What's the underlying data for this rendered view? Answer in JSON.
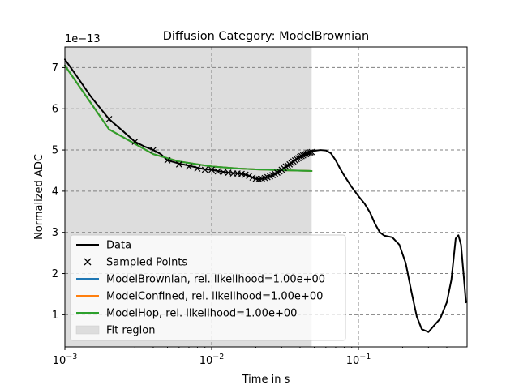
{
  "chart_data": {
    "type": "line",
    "title": "Diffusion Category: ModelBrownian",
    "xlabel": "Time in s",
    "ylabel": "Normalized ADC",
    "x_scale": "log",
    "xlim": [
      0.001,
      0.55
    ],
    "ylim": [
      0.22,
      7.5
    ],
    "y_offset_label": "1e−13",
    "x_ticks": [
      {
        "value": 0.001,
        "base": "10",
        "exp": "−3"
      },
      {
        "value": 0.01,
        "base": "10",
        "exp": "−2"
      },
      {
        "value": 0.1,
        "base": "10",
        "exp": "−1"
      }
    ],
    "y_ticks": [
      {
        "value": 1,
        "label": "1"
      },
      {
        "value": 2,
        "label": "2"
      },
      {
        "value": 3,
        "label": "3"
      },
      {
        "value": 4,
        "label": "4"
      },
      {
        "value": 5,
        "label": "5"
      },
      {
        "value": 6,
        "label": "6"
      },
      {
        "value": 7,
        "label": "7"
      }
    ],
    "grid": true,
    "legend_position": "lower-left",
    "fit_region": {
      "x_start": 0.001,
      "x_end": 0.048,
      "color": "#dddddd",
      "name": "Fit region"
    },
    "series": [
      {
        "name": "Data",
        "color": "#000000",
        "kind": "line",
        "x": [
          0.001,
          0.0012,
          0.0015,
          0.002,
          0.0025,
          0.003,
          0.0035,
          0.004,
          0.0045,
          0.005,
          0.006,
          0.007,
          0.008,
          0.009,
          0.01,
          0.011,
          0.012,
          0.013,
          0.014,
          0.015,
          0.016,
          0.017,
          0.018,
          0.019,
          0.02,
          0.021,
          0.022,
          0.023,
          0.025,
          0.027,
          0.03,
          0.033,
          0.036,
          0.04,
          0.045,
          0.05,
          0.055,
          0.06,
          0.065,
          0.07,
          0.075,
          0.08,
          0.09,
          0.1,
          0.11,
          0.12,
          0.13,
          0.14,
          0.15,
          0.17,
          0.19,
          0.21,
          0.23,
          0.25,
          0.27,
          0.3,
          0.33,
          0.36,
          0.4,
          0.43,
          0.46,
          0.48,
          0.5,
          0.52,
          0.54
        ],
        "y": [
          7.2,
          6.8,
          6.3,
          5.75,
          5.45,
          5.2,
          5.08,
          5.0,
          4.9,
          4.75,
          4.67,
          4.62,
          4.57,
          4.53,
          4.52,
          4.49,
          4.47,
          4.45,
          4.44,
          4.43,
          4.42,
          4.4,
          4.37,
          4.33,
          4.3,
          4.29,
          4.3,
          4.32,
          4.36,
          4.42,
          4.52,
          4.62,
          4.73,
          4.85,
          4.95,
          4.98,
          5.0,
          4.99,
          4.92,
          4.75,
          4.55,
          4.38,
          4.1,
          3.88,
          3.7,
          3.48,
          3.2,
          3.0,
          2.92,
          2.88,
          2.7,
          2.25,
          1.55,
          0.95,
          0.65,
          0.58,
          0.75,
          0.9,
          1.3,
          1.85,
          2.85,
          2.93,
          2.7,
          2.0,
          1.3
        ]
      },
      {
        "name": "Sampled Points",
        "color": "#000000",
        "kind": "markers",
        "x": [
          0.002,
          0.003,
          0.004,
          0.005,
          0.006,
          0.007,
          0.008,
          0.009,
          0.01,
          0.011,
          0.012,
          0.013,
          0.014,
          0.015,
          0.016,
          0.017,
          0.018,
          0.019,
          0.02,
          0.021,
          0.022,
          0.023,
          0.024,
          0.025,
          0.026,
          0.027,
          0.028,
          0.029,
          0.03,
          0.031,
          0.032,
          0.033,
          0.034,
          0.035,
          0.036,
          0.037,
          0.038,
          0.039,
          0.04,
          0.041,
          0.042,
          0.043,
          0.044,
          0.045,
          0.046,
          0.047,
          0.048
        ],
        "y": [
          5.75,
          5.2,
          5.0,
          4.75,
          4.65,
          4.6,
          4.55,
          4.52,
          4.52,
          4.48,
          4.46,
          4.45,
          4.43,
          4.43,
          4.42,
          4.4,
          4.37,
          4.33,
          4.3,
          4.29,
          4.3,
          4.32,
          4.34,
          4.36,
          4.39,
          4.42,
          4.45,
          4.48,
          4.52,
          4.56,
          4.6,
          4.62,
          4.65,
          4.68,
          4.72,
          4.75,
          4.78,
          4.8,
          4.83,
          4.85,
          4.87,
          4.89,
          4.9,
          4.92,
          4.93,
          4.94,
          4.95
        ]
      },
      {
        "name": "ModelBrownian, rel. likelihood=1.00e+00",
        "color": "#1f77b4",
        "kind": "line",
        "x": [
          0.001,
          0.002,
          0.004,
          0.006,
          0.01,
          0.015,
          0.02,
          0.03,
          0.048
        ],
        "y": [
          7.05,
          5.5,
          4.9,
          4.72,
          4.6,
          4.55,
          4.53,
          4.51,
          4.49
        ]
      },
      {
        "name": "ModelConfined, rel. likelihood=1.00e+00",
        "color": "#ff7f0e",
        "kind": "line",
        "x": [
          0.001,
          0.002,
          0.004,
          0.006,
          0.01,
          0.015,
          0.02,
          0.03,
          0.048
        ],
        "y": [
          7.05,
          5.5,
          4.9,
          4.72,
          4.6,
          4.55,
          4.53,
          4.51,
          4.49
        ]
      },
      {
        "name": "ModelHop, rel. likelihood=1.00e+00",
        "color": "#2ca02c",
        "kind": "line",
        "x": [
          0.001,
          0.002,
          0.004,
          0.006,
          0.01,
          0.015,
          0.02,
          0.03,
          0.048
        ],
        "y": [
          7.05,
          5.5,
          4.9,
          4.72,
          4.6,
          4.55,
          4.53,
          4.51,
          4.49
        ]
      }
    ]
  }
}
